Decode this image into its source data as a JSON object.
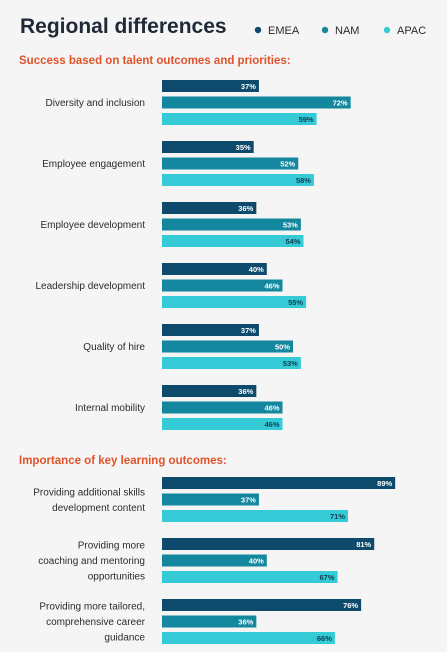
{
  "title": "Regional differences",
  "legend": [
    {
      "name": "EMEA",
      "color": "#0e4a6b"
    },
    {
      "name": "NAM",
      "color": "#13879d"
    },
    {
      "name": "APAC",
      "color": "#34cbd6"
    }
  ],
  "chart_data": [
    {
      "type": "bar",
      "orientation": "horizontal",
      "title": "Success based on talent outcomes and priorities:",
      "categories": [
        "Diversity and inclusion",
        "Employee engagement",
        "Employee development",
        "Leadership development",
        "Quality of hire",
        "Internal mobility"
      ],
      "series": [
        {
          "name": "EMEA",
          "values": [
            37,
            35,
            36,
            40,
            37,
            36
          ]
        },
        {
          "name": "NAM",
          "values": [
            72,
            52,
            53,
            46,
            50,
            46
          ]
        },
        {
          "name": "APAC",
          "values": [
            59,
            58,
            54,
            55,
            53,
            46
          ]
        }
      ],
      "value_suffix": "%",
      "xlim": [
        0,
        100
      ],
      "legend_position": "top-right",
      "grid": false
    },
    {
      "type": "bar",
      "orientation": "horizontal",
      "title": "Importance of key learning outcomes:",
      "categories": [
        "Providing additional skills development content",
        "Providing more coaching and mentoring opportunities",
        "Providing more tailored, comprehensive career guidance"
      ],
      "series": [
        {
          "name": "EMEA",
          "values": [
            89,
            81,
            76
          ]
        },
        {
          "name": "NAM",
          "values": [
            37,
            40,
            36
          ]
        },
        {
          "name": "APAC",
          "values": [
            71,
            67,
            66
          ]
        }
      ],
      "value_suffix": "%",
      "xlim": [
        0,
        100
      ],
      "grid": false
    }
  ]
}
